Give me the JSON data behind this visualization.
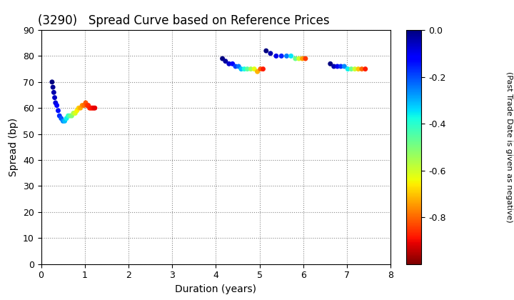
{
  "title": "(3290)   Spread Curve based on Reference Prices",
  "xlabel": "Duration (years)",
  "ylabel": "Spread (bp)",
  "xlim": [
    0,
    8
  ],
  "ylim": [
    0,
    90
  ],
  "xticks": [
    0,
    1,
    2,
    3,
    4,
    5,
    6,
    7,
    8
  ],
  "yticks": [
    0,
    10,
    20,
    30,
    40,
    50,
    60,
    70,
    80,
    90
  ],
  "cmap": "jet_r",
  "vmin": -1.0,
  "vmax": 0.0,
  "cluster1": {
    "duration": [
      0.25,
      0.27,
      0.29,
      0.31,
      0.33,
      0.36,
      0.39,
      0.42,
      0.46,
      0.5,
      0.54,
      0.58,
      0.62,
      0.66,
      0.7,
      0.74,
      0.78,
      0.82,
      0.86,
      0.9,
      0.94,
      0.98,
      1.02,
      1.05,
      1.08,
      1.11,
      1.14,
      1.17,
      1.2,
      1.23
    ],
    "spread": [
      70,
      68,
      66,
      64,
      62,
      61,
      59,
      57,
      56,
      55,
      55,
      56,
      57,
      57,
      57,
      58,
      58,
      59,
      60,
      60,
      61,
      61,
      62,
      61,
      61,
      60,
      60,
      60,
      60,
      60
    ],
    "time": [
      0.0,
      -0.02,
      -0.04,
      -0.06,
      -0.08,
      -0.11,
      -0.14,
      -0.17,
      -0.21,
      -0.26,
      -0.31,
      -0.36,
      -0.41,
      -0.46,
      -0.51,
      -0.56,
      -0.61,
      -0.65,
      -0.69,
      -0.73,
      -0.76,
      -0.79,
      -0.82,
      -0.84,
      -0.86,
      -0.87,
      -0.88,
      -0.89,
      -0.9,
      -0.91
    ]
  },
  "cluster2": {
    "duration": [
      4.15,
      4.22,
      4.3,
      4.38,
      4.45,
      4.52,
      4.58,
      4.65,
      4.72,
      4.8,
      4.88,
      4.95,
      5.02,
      5.08
    ],
    "spread": [
      79,
      78,
      77,
      77,
      76,
      76,
      75,
      75,
      75,
      75,
      75,
      74,
      75,
      75
    ],
    "time": [
      0.0,
      -0.03,
      -0.07,
      -0.12,
      -0.18,
      -0.24,
      -0.31,
      -0.38,
      -0.46,
      -0.55,
      -0.63,
      -0.72,
      -0.81,
      -0.88
    ]
  },
  "cluster3": {
    "duration": [
      5.15,
      5.25,
      5.38,
      5.5,
      5.62,
      5.72,
      5.82,
      5.9,
      5.98,
      6.05
    ],
    "spread": [
      82,
      81,
      80,
      80,
      80,
      80,
      79,
      79,
      79,
      79
    ],
    "time": [
      0.0,
      -0.04,
      -0.09,
      -0.16,
      -0.25,
      -0.35,
      -0.48,
      -0.6,
      -0.74,
      -0.85
    ]
  },
  "cluster4": {
    "duration": [
      6.62,
      6.7,
      6.78,
      6.86,
      6.94,
      7.02,
      7.1,
      7.18,
      7.26,
      7.34,
      7.42
    ],
    "spread": [
      77,
      76,
      76,
      76,
      76,
      75,
      75,
      75,
      75,
      75,
      75
    ],
    "time": [
      0.0,
      -0.04,
      -0.1,
      -0.17,
      -0.26,
      -0.36,
      -0.48,
      -0.59,
      -0.7,
      -0.8,
      -0.88
    ]
  },
  "background_color": "#ffffff",
  "grid_color": "#888888",
  "point_size": 25,
  "title_fontsize": 12,
  "axis_fontsize": 10,
  "tick_fontsize": 9,
  "cbar_tick_fontsize": 9,
  "cbar_label_fontsize": 8
}
